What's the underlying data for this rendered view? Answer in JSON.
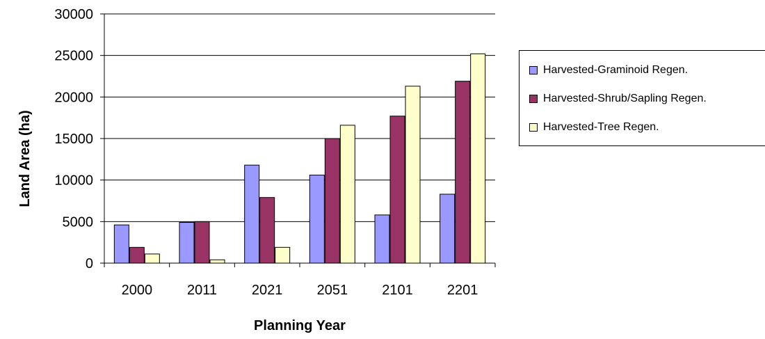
{
  "chart_data": {
    "type": "bar",
    "title": "",
    "xlabel": "Planning Year",
    "ylabel": "Land Area (ha)",
    "categories": [
      "2000",
      "2011",
      "2021",
      "2051",
      "2101",
      "2201"
    ],
    "ylim": [
      0,
      30000
    ],
    "yticks": [
      "0",
      "5000",
      "10000",
      "15000",
      "20000",
      "25000",
      "30000"
    ],
    "grid": true,
    "legend_position": "right",
    "series": [
      {
        "name": "Harvested-Graminoid Regen.",
        "color": "#9999ff",
        "values": [
          4600,
          4900,
          11800,
          10600,
          5800,
          8300
        ]
      },
      {
        "name": "Harvested-Shrub/Sapling Regen.",
        "color": "#993366",
        "values": [
          1900,
          5000,
          7900,
          15000,
          17700,
          21900
        ]
      },
      {
        "name": "Harvested-Tree Regen.",
        "color": "#ffffcc",
        "values": [
          1100,
          400,
          1900,
          16600,
          21300,
          25200
        ]
      }
    ]
  }
}
